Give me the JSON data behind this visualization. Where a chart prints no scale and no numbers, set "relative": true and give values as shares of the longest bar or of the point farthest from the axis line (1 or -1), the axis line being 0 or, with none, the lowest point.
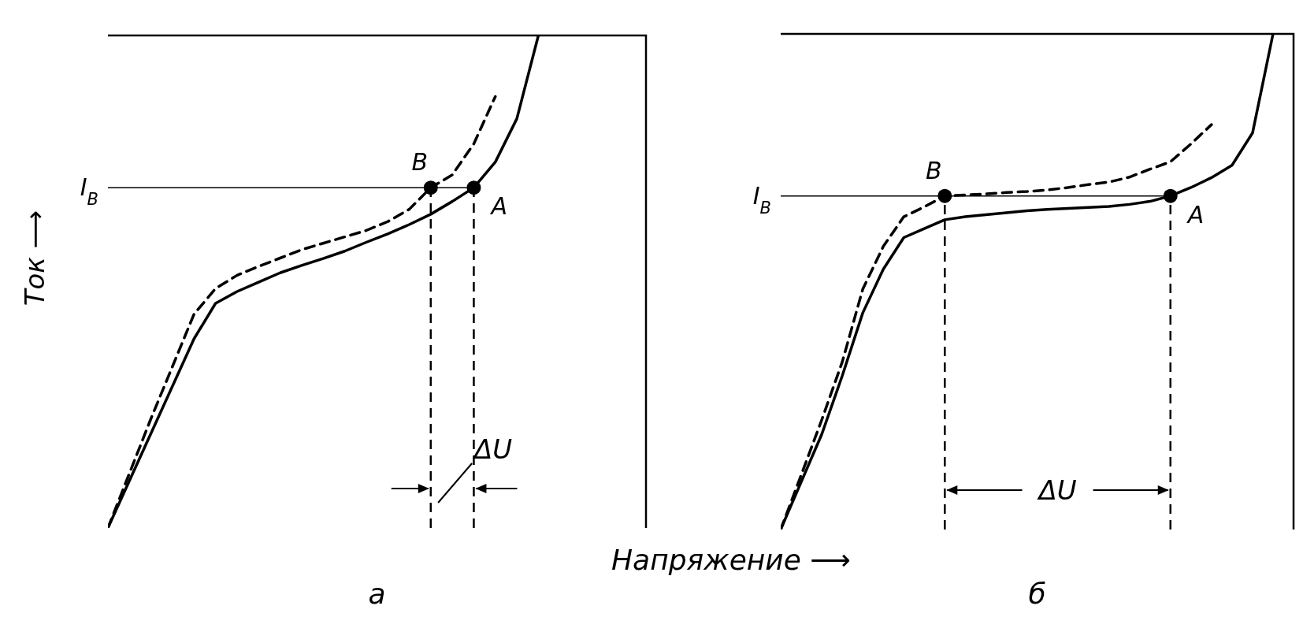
{
  "chart_data": [
    {
      "type": "line",
      "title": "а",
      "xlabel": "Напряжение ⟶",
      "ylabel": "Ток ⟶",
      "relative": true,
      "categories": [
        null,
        null,
        null,
        null,
        null,
        null,
        null,
        null,
        null,
        null,
        null,
        null,
        null,
        null,
        null,
        null,
        null,
        null,
        null,
        null,
        null,
        null,
        null,
        null,
        null,
        null
      ],
      "series": [
        {
          "color": "#000000",
          "line_style": "solid",
          "values": [
            0,
            0.096,
            0.192,
            0.288,
            0.384,
            0.456,
            0.48,
            0.499,
            0.518,
            0.533,
            0.547,
            0.562,
            0.58,
            0.597,
            0.616,
            0.637,
            0.663,
            0.691,
            0.743,
            0.831,
            1,
            null,
            null,
            null,
            null,
            null
          ]
        },
        {
          "color": "#000000",
          "line_style": "dashed",
          "values": [
            0,
            0.111,
            0.222,
            0.328,
            0.434,
            0.486,
            0.513,
            0.531,
            0.548,
            0.565,
            0.578,
            0.591,
            0.604,
            0.622,
            0.647,
            0.691,
            0.717,
            0.78,
            0.876,
            null,
            null,
            null,
            null,
            null,
            null,
            null
          ]
        }
      ],
      "ref_lines": [
        {
          "axis": "y",
          "value": 0.691,
          "label": "I$_{B}$",
          "line_style": "solid"
        }
      ],
      "annotations": [
        "A",
        "B",
        "ΔU"
      ]
    },
    {
      "type": "line",
      "title": "б",
      "relative": true,
      "categories": [
        null,
        null,
        null,
        null,
        null,
        null,
        null,
        null,
        null,
        null,
        null,
        null,
        null,
        null,
        null,
        null,
        null,
        null,
        null,
        null,
        null,
        null,
        null,
        null,
        null,
        null
      ],
      "series": [
        {
          "color": "#000000",
          "line_style": "solid",
          "values": [
            0,
            0.096,
            0.192,
            0.31,
            0.437,
            0.525,
            0.589,
            0.607,
            0.625,
            0.631,
            0.635,
            0.639,
            0.643,
            0.646,
            0.648,
            0.65,
            0.652,
            0.656,
            0.662,
            0.673,
            0.69,
            0.71,
            0.735,
            0.8,
            1,
            null
          ]
        },
        {
          "color": "#000000",
          "line_style": "dashed",
          "values": [
            0,
            0.11,
            0.221,
            0.338,
            0.485,
            0.571,
            0.631,
            0.651,
            0.673,
            0.675,
            0.677,
            0.68,
            0.682,
            0.685,
            0.69,
            0.696,
            0.701,
            0.711,
            0.727,
            0.742,
            0.778,
            0.817,
            null,
            null,
            null,
            null
          ]
        }
      ],
      "ref_lines": [
        {
          "axis": "y",
          "value": 0.673,
          "label": "I$_{B}$",
          "line_style": "solid"
        }
      ],
      "annotations": [
        "A",
        "B",
        "ΔU"
      ]
    }
  ]
}
